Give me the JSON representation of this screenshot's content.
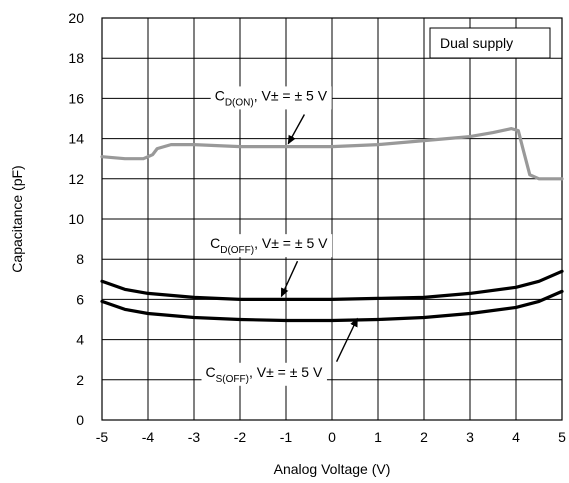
{
  "chart_data": {
    "type": "line",
    "xlabel": "Analog Voltage (V)",
    "ylabel": "Capacitance (pF)",
    "xlim": [
      -5,
      5
    ],
    "ylim": [
      0,
      20
    ],
    "x_ticks": [
      "-5",
      "-4",
      "-3",
      "-2",
      "-1",
      "0",
      "1",
      "2",
      "3",
      "4",
      "5"
    ],
    "y_ticks": [
      "0",
      "2",
      "4",
      "6",
      "8",
      "10",
      "12",
      "14",
      "16",
      "18",
      "20"
    ],
    "grid": true,
    "legend_box": "Dual supply",
    "series": [
      {
        "color": "#999999",
        "x": [
          -5,
          -4.5,
          -4.1,
          -3.9,
          -3.8,
          -3.5,
          -3,
          -2,
          -1,
          0,
          0.5,
          1,
          2,
          3,
          3.5,
          3.9,
          4.05,
          4.15,
          4.3,
          4.5,
          5
        ],
        "y": [
          13.1,
          13.0,
          13.0,
          13.2,
          13.5,
          13.7,
          13.7,
          13.6,
          13.6,
          13.6,
          13.65,
          13.7,
          13.9,
          14.1,
          14.3,
          14.5,
          14.4,
          13.5,
          12.2,
          12.0,
          12.0
        ]
      },
      {
        "color": "#000000",
        "x": [
          -5,
          -4.5,
          -4,
          -3,
          -2,
          -1,
          0,
          1,
          2,
          3,
          4,
          4.5,
          5
        ],
        "y": [
          6.9,
          6.5,
          6.3,
          6.1,
          6.0,
          6.0,
          6.0,
          6.05,
          6.1,
          6.3,
          6.6,
          6.9,
          7.4
        ]
      },
      {
        "color": "#000000",
        "x": [
          -5,
          -4.5,
          -4,
          -3,
          -2,
          -1,
          0,
          1,
          2,
          3,
          4,
          4.5,
          5
        ],
        "y": [
          5.9,
          5.5,
          5.3,
          5.1,
          5.0,
          4.95,
          4.95,
          5.0,
          5.1,
          5.3,
          5.6,
          5.9,
          6.4
        ]
      }
    ],
    "annotations": [
      {
        "main": "C",
        "sub": "D(ON)",
        "suffix": ", V± = ± 5 V",
        "label_x": -2.55,
        "label_y": 15.9,
        "arrow_from": [
          -0.6,
          15.2
        ],
        "arrow_to": [
          -0.95,
          13.75
        ]
      },
      {
        "main": "C",
        "sub": "D(OFF)",
        "suffix": ", V± = ± 5 V",
        "label_x": -2.65,
        "label_y": 8.55,
        "arrow_from": [
          -0.75,
          7.9
        ],
        "arrow_to": [
          -1.1,
          6.15
        ]
      },
      {
        "main": "C",
        "sub": "S(OFF)",
        "suffix": ", V± = ± 5 V",
        "label_x": -2.75,
        "label_y": 2.15,
        "arrow_from": [
          0.1,
          2.9
        ],
        "arrow_to": [
          0.55,
          5.05
        ]
      }
    ]
  }
}
